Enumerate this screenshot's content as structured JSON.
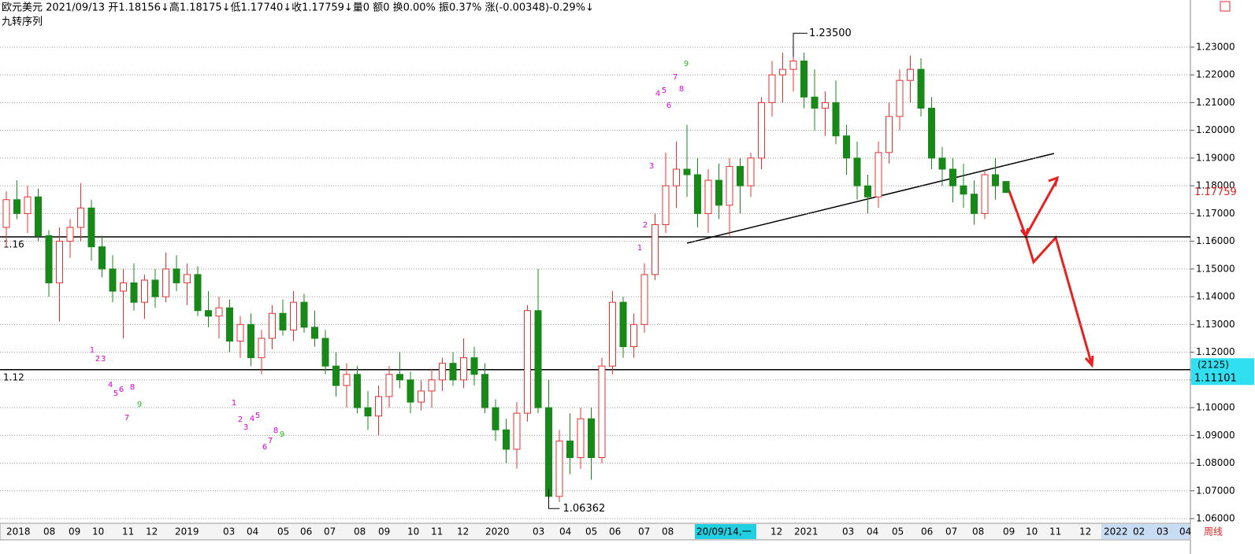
{
  "header": {
    "line1": "欧元美元 2021/09/13 开1.18156↓高1.18175↓低1.17740↓收1.17759↓量0 额0 换0.00% 振0.37% 涨(-0.00348)-0.29%↓",
    "line2": "九转序列"
  },
  "chart_data": {
    "type": "candlestick",
    "period_label": "周线",
    "ylim": [
      1.0583,
      1.247
    ],
    "yticks": [
      {
        "value": 1.06,
        "label": "1.06000"
      },
      {
        "value": 1.07,
        "label": "1.07000"
      },
      {
        "value": 1.08,
        "label": "1.08000"
      },
      {
        "value": 1.09,
        "label": "1.09000"
      },
      {
        "value": 1.1,
        "label": "1.10000"
      },
      {
        "value": 1.11,
        "label": "1.11000"
      },
      {
        "value": 1.12,
        "label": "1.12000"
      },
      {
        "value": 1.13,
        "label": "1.13000"
      },
      {
        "value": 1.14,
        "label": "1.14000"
      },
      {
        "value": 1.15,
        "label": "1.15000"
      },
      {
        "value": 1.16,
        "label": "1.16000"
      },
      {
        "value": 1.17,
        "label": "1.17000"
      },
      {
        "value": 1.18,
        "label": "1.18000"
      },
      {
        "value": 1.19,
        "label": "1.19000"
      },
      {
        "value": 1.2,
        "label": "1.20000"
      },
      {
        "value": 1.21,
        "label": "1.21000"
      },
      {
        "value": 1.22,
        "label": "1.22000"
      },
      {
        "value": 1.23,
        "label": "1.23000"
      }
    ],
    "grid": true,
    "up_color": "#e83030",
    "down_color": "#188818",
    "x_labels": [
      "2018",
      "08",
      "09",
      "10",
      "11",
      "12",
      "2019",
      "03",
      "04",
      "05",
      "06",
      "07",
      "08",
      "09",
      "10",
      "11",
      "12",
      "2020",
      "03",
      "04",
      "05",
      "06",
      "07",
      "08",
      "20/09/14,一",
      "12",
      "2021",
      "03",
      "04",
      "05",
      "06",
      "07",
      "08",
      "09",
      "10",
      "11",
      "12",
      "2022",
      "02",
      "03",
      "04"
    ],
    "levels": [
      {
        "value": 1.1616,
        "label": "1.16"
      },
      {
        "value": 1.1137,
        "label": "1.12"
      }
    ],
    "high_mark": {
      "value": 1.235,
      "label": "1.23500"
    },
    "low_mark": {
      "value": 1.06362,
      "label": "1.06362"
    },
    "last_price": {
      "value": 1.17759,
      "label": "1.17759"
    },
    "cursor": {
      "count": "(2125)",
      "price": 1.11101
    },
    "td_sequence": [
      {
        "text": "1",
        "color": "#e000e0"
      },
      {
        "text": "2",
        "color": "#e000e0"
      },
      {
        "text": "3",
        "color": "#e000e0"
      },
      {
        "text": "4",
        "color": "#e000e0"
      },
      {
        "text": "5",
        "color": "#e000e0"
      },
      {
        "text": "6",
        "color": "#e000e0"
      },
      {
        "text": "8",
        "color": "#e000e0"
      },
      {
        "text": "9",
        "color": "#20c020"
      },
      {
        "text": "7",
        "color": "#e000e0"
      },
      {
        "text": "1",
        "color": "#e000e0"
      },
      {
        "text": "2",
        "color": "#e000e0"
      },
      {
        "text": "3",
        "color": "#e000e0"
      },
      {
        "text": "4",
        "color": "#e000e0"
      },
      {
        "text": "5",
        "color": "#e000e0"
      },
      {
        "text": "8",
        "color": "#e000e0"
      },
      {
        "text": "9",
        "color": "#20c020"
      },
      {
        "text": "7",
        "color": "#e000e0"
      },
      {
        "text": "6",
        "color": "#e000e0"
      },
      {
        "text": "1",
        "color": "#e000e0"
      },
      {
        "text": "2",
        "color": "#e000e0"
      },
      {
        "text": "3",
        "color": "#e000e0"
      },
      {
        "text": "4",
        "color": "#e000e0"
      },
      {
        "text": "5",
        "color": "#e000e0"
      },
      {
        "text": "7",
        "color": "#e000e0"
      },
      {
        "text": "9",
        "color": "#20c020"
      },
      {
        "text": "8",
        "color": "#e000e0"
      },
      {
        "text": "6",
        "color": "#e000e0"
      }
    ],
    "ohlc": [
      [
        1.165,
        1.178,
        1.158,
        1.175
      ],
      [
        1.175,
        1.182,
        1.168,
        1.17
      ],
      [
        1.17,
        1.18,
        1.163,
        1.176
      ],
      [
        1.176,
        1.179,
        1.16,
        1.162
      ],
      [
        1.162,
        1.164,
        1.14,
        1.145
      ],
      [
        1.145,
        1.165,
        1.131,
        1.16
      ],
      [
        1.16,
        1.168,
        1.154,
        1.165
      ],
      [
        1.165,
        1.181,
        1.16,
        1.172
      ],
      [
        1.172,
        1.175,
        1.153,
        1.158
      ],
      [
        1.158,
        1.162,
        1.147,
        1.15
      ],
      [
        1.15,
        1.155,
        1.138,
        1.142
      ],
      [
        1.142,
        1.15,
        1.125,
        1.145
      ],
      [
        1.145,
        1.152,
        1.135,
        1.138
      ],
      [
        1.138,
        1.148,
        1.132,
        1.146
      ],
      [
        1.146,
        1.15,
        1.136,
        1.14
      ],
      [
        1.14,
        1.156,
        1.138,
        1.15
      ],
      [
        1.15,
        1.155,
        1.142,
        1.145
      ],
      [
        1.145,
        1.152,
        1.137,
        1.148
      ],
      [
        1.148,
        1.151,
        1.133,
        1.135
      ],
      [
        1.135,
        1.142,
        1.129,
        1.133
      ],
      [
        1.133,
        1.14,
        1.125,
        1.136
      ],
      [
        1.136,
        1.139,
        1.12,
        1.124
      ],
      [
        1.124,
        1.133,
        1.118,
        1.13
      ],
      [
        1.13,
        1.134,
        1.115,
        1.118
      ],
      [
        1.118,
        1.128,
        1.112,
        1.125
      ],
      [
        1.125,
        1.137,
        1.121,
        1.134
      ],
      [
        1.134,
        1.139,
        1.126,
        1.128
      ],
      [
        1.128,
        1.142,
        1.124,
        1.138
      ],
      [
        1.138,
        1.141,
        1.127,
        1.129
      ],
      [
        1.129,
        1.135,
        1.122,
        1.125
      ],
      [
        1.125,
        1.128,
        1.112,
        1.115
      ],
      [
        1.115,
        1.12,
        1.104,
        1.108
      ],
      [
        1.108,
        1.116,
        1.1,
        1.112
      ],
      [
        1.112,
        1.115,
        1.098,
        1.1
      ],
      [
        1.1,
        1.106,
        1.092,
        1.097
      ],
      [
        1.097,
        1.108,
        1.09,
        1.104
      ],
      [
        1.104,
        1.115,
        1.1,
        1.112
      ],
      [
        1.112,
        1.12,
        1.107,
        1.11
      ],
      [
        1.11,
        1.113,
        1.098,
        1.102
      ],
      [
        1.102,
        1.11,
        1.099,
        1.106
      ],
      [
        1.106,
        1.114,
        1.1,
        1.11
      ],
      [
        1.11,
        1.118,
        1.106,
        1.116
      ],
      [
        1.116,
        1.12,
        1.108,
        1.11
      ],
      [
        1.11,
        1.125,
        1.107,
        1.118
      ],
      [
        1.118,
        1.122,
        1.108,
        1.112
      ],
      [
        1.112,
        1.116,
        1.098,
        1.1
      ],
      [
        1.1,
        1.103,
        1.088,
        1.092
      ],
      [
        1.092,
        1.096,
        1.08,
        1.085
      ],
      [
        1.085,
        1.102,
        1.078,
        1.098
      ],
      [
        1.098,
        1.137,
        1.095,
        1.135
      ],
      [
        1.135,
        1.15,
        1.098,
        1.1
      ],
      [
        1.1,
        1.11,
        1.064,
        1.068
      ],
      [
        1.068,
        1.092,
        1.066,
        1.088
      ],
      [
        1.088,
        1.098,
        1.076,
        1.082
      ],
      [
        1.082,
        1.1,
        1.078,
        1.096
      ],
      [
        1.096,
        1.1,
        1.074,
        1.082
      ],
      [
        1.082,
        1.118,
        1.08,
        1.115
      ],
      [
        1.115,
        1.142,
        1.112,
        1.138
      ],
      [
        1.138,
        1.14,
        1.118,
        1.122
      ],
      [
        1.122,
        1.134,
        1.118,
        1.13
      ],
      [
        1.13,
        1.152,
        1.127,
        1.148
      ],
      [
        1.148,
        1.17,
        1.146,
        1.166
      ],
      [
        1.166,
        1.192,
        1.163,
        1.18
      ],
      [
        1.18,
        1.196,
        1.172,
        1.186
      ],
      [
        1.186,
        1.202,
        1.176,
        1.184
      ],
      [
        1.184,
        1.19,
        1.165,
        1.17
      ],
      [
        1.17,
        1.186,
        1.163,
        1.182
      ],
      [
        1.182,
        1.188,
        1.168,
        1.173
      ],
      [
        1.173,
        1.19,
        1.162,
        1.187
      ],
      [
        1.187,
        1.19,
        1.17,
        1.18
      ],
      [
        1.18,
        1.192,
        1.176,
        1.19
      ],
      [
        1.19,
        1.212,
        1.186,
        1.21
      ],
      [
        1.21,
        1.225,
        1.205,
        1.22
      ],
      [
        1.22,
        1.228,
        1.21,
        1.222
      ],
      [
        1.222,
        1.235,
        1.214,
        1.225
      ],
      [
        1.225,
        1.228,
        1.208,
        1.212
      ],
      [
        1.212,
        1.222,
        1.2,
        1.208
      ],
      [
        1.208,
        1.214,
        1.198,
        1.21
      ],
      [
        1.21,
        1.218,
        1.195,
        1.198
      ],
      [
        1.198,
        1.202,
        1.184,
        1.19
      ],
      [
        1.19,
        1.196,
        1.175,
        1.18
      ],
      [
        1.18,
        1.184,
        1.17,
        1.176
      ],
      [
        1.176,
        1.196,
        1.172,
        1.192
      ],
      [
        1.192,
        1.21,
        1.188,
        1.205
      ],
      [
        1.205,
        1.222,
        1.2,
        1.218
      ],
      [
        1.218,
        1.227,
        1.21,
        1.222
      ],
      [
        1.222,
        1.226,
        1.205,
        1.208
      ],
      [
        1.208,
        1.212,
        1.186,
        1.19
      ],
      [
        1.19,
        1.194,
        1.18,
        1.186
      ],
      [
        1.186,
        1.19,
        1.174,
        1.18
      ],
      [
        1.18,
        1.188,
        1.172,
        1.177
      ],
      [
        1.177,
        1.182,
        1.166,
        1.17
      ],
      [
        1.17,
        1.186,
        1.168,
        1.184
      ],
      [
        1.184,
        1.19,
        1.175,
        1.18
      ],
      [
        1.18156,
        1.18175,
        1.1774,
        1.17759
      ]
    ]
  }
}
